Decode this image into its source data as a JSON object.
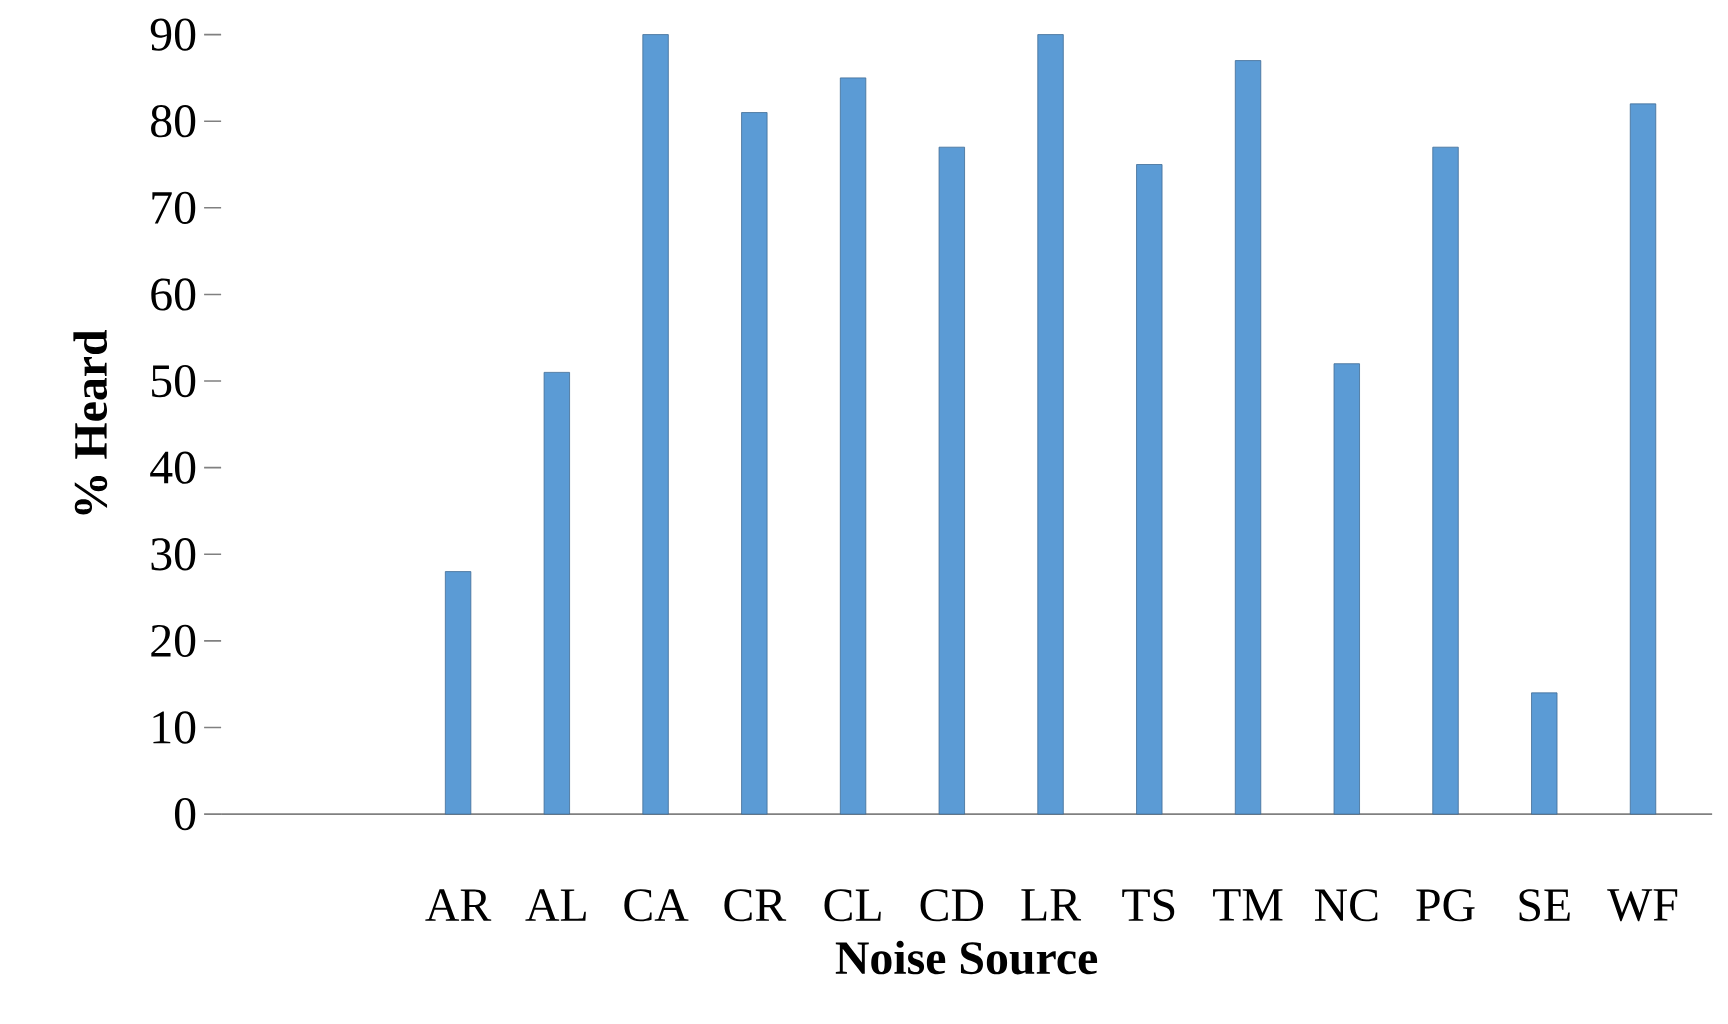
{
  "chart_data": {
    "type": "bar",
    "xlabel": "Noise Source",
    "ylabel": "% Heard",
    "categories": [
      "AR",
      "AL",
      "CA",
      "CR",
      "CL",
      "CD",
      "LR",
      "TS",
      "TM",
      "NC",
      "PG",
      "SE",
      "WF"
    ],
    "values": [
      28,
      51,
      90,
      81,
      85,
      77,
      90,
      75,
      87,
      52,
      77,
      14,
      82
    ],
    "color": "#5b9bd5",
    "ylim": [
      0,
      90
    ],
    "yticks": [
      0,
      10,
      20,
      30,
      40,
      50,
      60,
      70,
      80,
      90
    ]
  }
}
